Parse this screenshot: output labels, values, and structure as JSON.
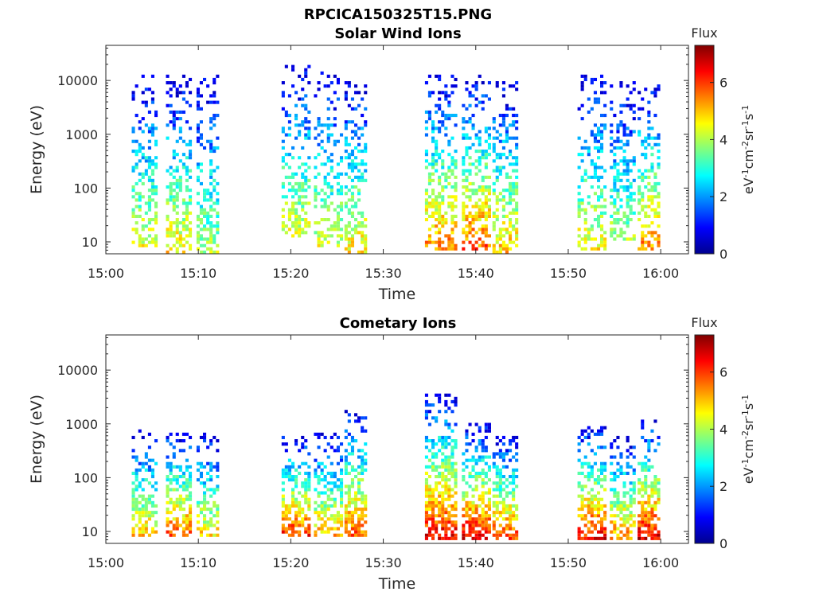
{
  "figure_title": "RPCICA150325T15.PNG",
  "colors": {
    "axis": "#262626",
    "colormap": [
      "#00008f",
      "#0000ff",
      "#0080ff",
      "#00ffff",
      "#80ff80",
      "#ffff00",
      "#ff8000",
      "#ff0000",
      "#800000"
    ]
  },
  "chart_data": [
    {
      "type": "heatmap",
      "title": "Solar Wind Ions",
      "xlabel": "Time",
      "ylabel": "Energy (eV)",
      "x_range_min": [
        900,
        963
      ],
      "x_ticks": [
        "15:00",
        "15:10",
        "15:20",
        "15:30",
        "15:40",
        "15:50",
        "16:00"
      ],
      "x_tick_values": [
        900,
        910,
        920,
        930,
        940,
        950,
        960
      ],
      "y_scale": "log",
      "y_range": [
        6,
        45000
      ],
      "y_ticks": [
        "10",
        "100",
        "1000",
        "10000"
      ],
      "y_tick_values": [
        10,
        100,
        1000,
        10000
      ],
      "colorbar": {
        "label": "Flux",
        "units_label": "eV-1cm-2sr-1s-1",
        "range": [
          0,
          7.3
        ],
        "ticks": [
          "0",
          "2",
          "4",
          "6"
        ],
        "tick_values": [
          0,
          2,
          4,
          6
        ]
      },
      "bursts": [
        {
          "start": 902.8,
          "end": 905.5,
          "flux_max": 4.5,
          "low_e": 8,
          "high_e": 13000,
          "density": 0.45
        },
        {
          "start": 906.5,
          "end": 909.0,
          "flux_max": 4.8,
          "low_e": 6,
          "high_e": 12000,
          "density": 0.5
        },
        {
          "start": 909.8,
          "end": 912.0,
          "flux_max": 4.0,
          "low_e": 6,
          "high_e": 12000,
          "density": 0.45
        },
        {
          "start": 919.0,
          "end": 922.0,
          "flux_max": 4.5,
          "low_e": 12,
          "high_e": 20000,
          "density": 0.45
        },
        {
          "start": 922.5,
          "end": 925.5,
          "flux_max": 4.3,
          "low_e": 8,
          "high_e": 15000,
          "density": 0.45
        },
        {
          "start": 925.8,
          "end": 928.2,
          "flux_max": 4.8,
          "low_e": 6,
          "high_e": 10000,
          "density": 0.5
        },
        {
          "start": 934.5,
          "end": 938.0,
          "flux_max": 5.5,
          "low_e": 7,
          "high_e": 12000,
          "density": 0.5
        },
        {
          "start": 938.5,
          "end": 941.5,
          "flux_max": 5.8,
          "low_e": 7,
          "high_e": 13000,
          "density": 0.55
        },
        {
          "start": 941.8,
          "end": 944.5,
          "flux_max": 5.0,
          "low_e": 6,
          "high_e": 10000,
          "density": 0.5
        },
        {
          "start": 951.0,
          "end": 954.0,
          "flux_max": 4.6,
          "low_e": 7,
          "high_e": 12000,
          "density": 0.45
        },
        {
          "start": 954.5,
          "end": 957.0,
          "flux_max": 4.0,
          "low_e": 10,
          "high_e": 10000,
          "density": 0.45
        },
        {
          "start": 957.5,
          "end": 959.8,
          "flux_max": 5.5,
          "low_e": 7,
          "high_e": 9000,
          "density": 0.45
        }
      ]
    },
    {
      "type": "heatmap",
      "title": "Cometary Ions",
      "xlabel": "Time",
      "ylabel": "Energy (eV)",
      "x_range_min": [
        900,
        963
      ],
      "x_ticks": [
        "15:00",
        "15:10",
        "15:20",
        "15:30",
        "15:40",
        "15:50",
        "16:00"
      ],
      "x_tick_values": [
        900,
        910,
        920,
        930,
        940,
        950,
        960
      ],
      "y_scale": "log",
      "y_range": [
        6,
        45000
      ],
      "y_ticks": [
        "10",
        "100",
        "1000",
        "10000"
      ],
      "y_tick_values": [
        10,
        100,
        1000,
        10000
      ],
      "colorbar": {
        "label": "Flux",
        "units_label": "eV-1cm-2sr-1s-1",
        "range": [
          0,
          7.3
        ],
        "ticks": [
          "0",
          "2",
          "4",
          "6"
        ],
        "tick_values": [
          0,
          2,
          4,
          6
        ]
      },
      "bursts": [
        {
          "start": 902.8,
          "end": 905.5,
          "flux_max": 5.0,
          "low_e": 8,
          "high_e": 800,
          "density": 0.6
        },
        {
          "start": 906.5,
          "end": 909.0,
          "flux_max": 5.8,
          "low_e": 8,
          "high_e": 800,
          "density": 0.65
        },
        {
          "start": 909.8,
          "end": 912.0,
          "flux_max": 4.8,
          "low_e": 8,
          "high_e": 700,
          "density": 0.55
        },
        {
          "start": 919.0,
          "end": 922.0,
          "flux_max": 6.2,
          "low_e": 8,
          "high_e": 600,
          "density": 0.65
        },
        {
          "start": 922.5,
          "end": 925.5,
          "flux_max": 5.2,
          "low_e": 8,
          "high_e": 700,
          "density": 0.6
        },
        {
          "start": 925.8,
          "end": 928.2,
          "flux_max": 5.8,
          "low_e": 8,
          "high_e": 1800,
          "density": 0.65
        },
        {
          "start": 934.5,
          "end": 938.0,
          "flux_max": 6.5,
          "low_e": 7,
          "high_e": 3800,
          "density": 0.7
        },
        {
          "start": 938.5,
          "end": 941.5,
          "flux_max": 6.6,
          "low_e": 7,
          "high_e": 1000,
          "density": 0.7
        },
        {
          "start": 941.8,
          "end": 944.5,
          "flux_max": 6.0,
          "low_e": 7,
          "high_e": 600,
          "density": 0.65
        },
        {
          "start": 951.0,
          "end": 954.0,
          "flux_max": 6.5,
          "low_e": 7,
          "high_e": 900,
          "density": 0.6
        },
        {
          "start": 954.5,
          "end": 957.0,
          "flux_max": 5.5,
          "low_e": 7,
          "high_e": 600,
          "density": 0.6
        },
        {
          "start": 957.5,
          "end": 959.8,
          "flux_max": 6.6,
          "low_e": 7,
          "high_e": 1200,
          "density": 0.6
        }
      ]
    }
  ]
}
